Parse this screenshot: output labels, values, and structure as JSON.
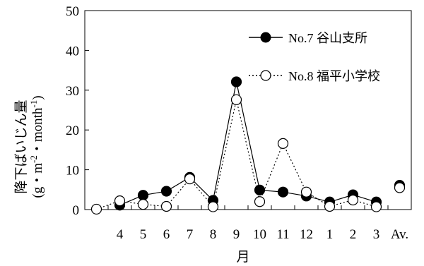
{
  "chart_data": {
    "type": "line",
    "categories": [
      "",
      "4",
      "5",
      "6",
      "7",
      "8",
      "9",
      "10",
      "11",
      "12",
      "1",
      "2",
      "3",
      "Av."
    ],
    "ylim": [
      0,
      50
    ],
    "yticks": [
      0,
      10,
      20,
      30,
      40,
      50
    ],
    "xlabel": "月",
    "ylabel_line1": "降下ばいじん量",
    "ylabel_line2": "(g・m",
    "ylabel_line2_sup1": "-2",
    "ylabel_line2_mid": "・month",
    "ylabel_line2_sup2": "-1",
    "ylabel_line2_end": ")",
    "grid": false,
    "legend_position": "top-right",
    "series": [
      {
        "name": "No.7 谷山支所",
        "marker": "filled-circle",
        "line_style": "solid",
        "color": "#000000",
        "values": [
          null,
          1.1,
          3.6,
          4.6,
          8.1,
          2.3,
          32.1,
          4.9,
          4.4,
          3.4,
          1.9,
          3.7,
          1.9,
          6.1
        ]
      },
      {
        "name": "No.8 福平小学校",
        "marker": "open-circle",
        "line_style": "dotted",
        "color": "#000000",
        "values": [
          0.1,
          2.2,
          1.3,
          0.8,
          7.7,
          0.7,
          27.6,
          2.0,
          16.6,
          4.4,
          0.8,
          2.4,
          0.7,
          5.5
        ]
      }
    ]
  }
}
